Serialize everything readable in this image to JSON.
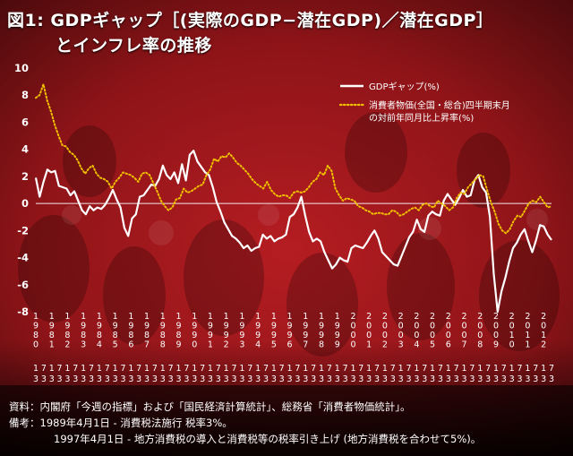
{
  "title_line1": "図1: GDPギャップ［(実際のGDP−潜在GDP)／潜在GDP］",
  "title_line2": "とインフレ率の推移",
  "footer": {
    "source": "資料：内閣府「今週の指標」および「国民経済計算統計」、総務省「消費者物価統計」。",
    "note1": "備考：1989年4月1日 - 消費税法施行 税率3%。",
    "note2": "1997年4月1日 - 地方消費税の導入と消費税等の税率引き上げ (地方消費税を合わせて5%)。"
  },
  "colors": {
    "background": "#a0181c",
    "gdp_gap": "#ffffff",
    "cpi": "#f0c000"
  },
  "chart_data": {
    "type": "line",
    "ylim": [
      -8,
      10
    ],
    "yticks": [
      -8,
      -6,
      -4,
      -2,
      0,
      2,
      4,
      6,
      8,
      10
    ],
    "grid": false,
    "legend_position": "top-right",
    "x_tick_labels": [
      [
        "1980",
        "1",
        "3"
      ],
      [
        "1980",
        "7",
        "3"
      ],
      [
        "1981",
        "1",
        "3"
      ],
      [
        "1981",
        "7",
        "3"
      ],
      [
        "1982",
        "1",
        "3"
      ],
      [
        "1982",
        "7",
        "3"
      ],
      [
        "1983",
        "1",
        "3"
      ],
      [
        "1983",
        "7",
        "3"
      ],
      [
        "1984",
        "1",
        "3"
      ],
      [
        "1984",
        "7",
        "3"
      ],
      [
        "1985",
        "1",
        "3"
      ],
      [
        "1985",
        "7",
        "3"
      ],
      [
        "1986",
        "1",
        "3"
      ],
      [
        "1986",
        "7",
        "3"
      ],
      [
        "1987",
        "1",
        "3"
      ],
      [
        "1987",
        "7",
        "3"
      ],
      [
        "1988",
        "1",
        "3"
      ],
      [
        "1988",
        "7",
        "3"
      ],
      [
        "1989",
        "1",
        "3"
      ],
      [
        "1989",
        "7",
        "3"
      ],
      [
        "1990",
        "1",
        "3"
      ],
      [
        "1990",
        "7",
        "3"
      ],
      [
        "1991",
        "1",
        "3"
      ],
      [
        "1991",
        "7",
        "3"
      ],
      [
        "1992",
        "1",
        "3"
      ],
      [
        "1992",
        "7",
        "3"
      ],
      [
        "1993",
        "1",
        "3"
      ],
      [
        "1993",
        "7",
        "3"
      ],
      [
        "1994",
        "1",
        "3"
      ],
      [
        "1994",
        "7",
        "3"
      ],
      [
        "1995",
        "1",
        "3"
      ],
      [
        "1995",
        "7",
        "3"
      ],
      [
        "1996",
        "1",
        "3"
      ],
      [
        "1996",
        "7",
        "3"
      ],
      [
        "1997",
        "1",
        "3"
      ],
      [
        "1997",
        "7",
        "3"
      ],
      [
        "1998",
        "1",
        "3"
      ],
      [
        "1998",
        "7",
        "3"
      ],
      [
        "1999",
        "1",
        "3"
      ],
      [
        "1999",
        "7",
        "3"
      ],
      [
        "2000",
        "1",
        "3"
      ],
      [
        "2000",
        "7",
        "3"
      ],
      [
        "2001",
        "1",
        "3"
      ],
      [
        "2001",
        "7",
        "3"
      ],
      [
        "2002",
        "1",
        "3"
      ],
      [
        "2002",
        "7",
        "3"
      ],
      [
        "2003",
        "1",
        "3"
      ],
      [
        "2003",
        "7",
        "3"
      ],
      [
        "2004",
        "1",
        "3"
      ],
      [
        "2004",
        "7",
        "3"
      ],
      [
        "2005",
        "1",
        "3"
      ],
      [
        "2005",
        "7",
        "3"
      ],
      [
        "2006",
        "1",
        "3"
      ],
      [
        "2006",
        "7",
        "3"
      ],
      [
        "2007",
        "1",
        "3"
      ],
      [
        "2007",
        "7",
        "3"
      ],
      [
        "2008",
        "1",
        "3"
      ],
      [
        "2008",
        "7",
        "3"
      ],
      [
        "2009",
        "1",
        "3"
      ],
      [
        "2009",
        "7",
        "3"
      ],
      [
        "2010",
        "1",
        "3"
      ],
      [
        "2010",
        "7",
        "3"
      ],
      [
        "2011",
        "1",
        "3"
      ],
      [
        "2011",
        "7",
        "3"
      ],
      [
        "2012",
        "1",
        "3"
      ],
      [
        "2012",
        "7",
        "3"
      ]
    ],
    "series": [
      {
        "name": "GDPギャップ(%)",
        "style": "solid",
        "values": [
          1.9,
          0.5,
          1.6,
          2.5,
          2.3,
          2.4,
          1.3,
          1.2,
          1.1,
          0.6,
          0.9,
          0.2,
          -0.5,
          -0.8,
          -0.2,
          -0.5,
          -0.3,
          -0.4,
          -0.1,
          0.4,
          1.0,
          0.3,
          -0.3,
          -1.8,
          -2.4,
          -1.1,
          -0.8,
          0.5,
          0.6,
          1.0,
          1.4,
          1.3,
          1.8,
          2.8,
          2.1,
          1.8,
          2.3,
          1.5,
          2.9,
          1.7,
          3.6,
          3.9,
          3.1,
          2.7,
          2.3,
          2.1,
          1.2,
          0.1,
          -0.6,
          -1.4,
          -1.9,
          -2.4,
          -2.6,
          -2.9,
          -3.3,
          -3.1,
          -3.5,
          -3.3,
          -3.2,
          -2.3,
          -2.6,
          -2.4,
          -2.8,
          -2.6,
          -2.5,
          -2.3,
          -1.0,
          -0.8,
          -0.3,
          0.5,
          -0.9,
          -2.1,
          -2.8,
          -2.6,
          -2.8,
          -3.6,
          -4.2,
          -4.8,
          -4.5,
          -4.0,
          -4.2,
          -4.3,
          -3.3,
          -3.1,
          -3.2,
          -3.3,
          -2.9,
          -2.4,
          -2.0,
          -2.6,
          -3.6,
          -3.9,
          -4.2,
          -4.5,
          -4.6,
          -3.9,
          -3.2,
          -2.5,
          -2.1,
          -1.2,
          -1.9,
          -2.1,
          -0.9,
          -0.6,
          -0.8,
          -0.9,
          0.2,
          0.7,
          0.3,
          -0.1,
          0.4,
          1.0,
          0.5,
          0.6,
          1.7,
          2.1,
          1.2,
          0.8,
          -1.0,
          -5.2,
          -8.0,
          -6.5,
          -5.5,
          -4.3,
          -3.3,
          -2.9,
          -2.3,
          -1.9,
          -2.8,
          -3.6,
          -2.7,
          -1.6,
          -1.7,
          -2.3,
          -2.7
        ]
      },
      {
        "name": "消費者物価(全国・総合)四半期末月の対前年同月比上昇率(%)",
        "style": "dotted",
        "values": [
          7.8,
          8.0,
          8.8,
          7.6,
          6.8,
          5.8,
          5.0,
          4.3,
          4.2,
          3.8,
          3.6,
          3.2,
          2.6,
          2.2,
          2.6,
          2.8,
          2.2,
          1.9,
          1.8,
          1.6,
          1.1,
          1.6,
          1.9,
          2.3,
          2.2,
          2.1,
          1.9,
          1.6,
          2.2,
          2.3,
          2.1,
          1.5,
          0.9,
          0.2,
          -0.2,
          -0.5,
          -0.3,
          0.3,
          0.4,
          1.1,
          0.8,
          0.9,
          1.1,
          1.3,
          1.4,
          2.1,
          2.5,
          3.3,
          3.1,
          3.5,
          3.4,
          3.7,
          3.4,
          3.0,
          2.8,
          2.5,
          2.2,
          1.8,
          1.5,
          1.3,
          1.1,
          1.6,
          1.0,
          0.7,
          0.5,
          0.6,
          0.6,
          0.4,
          0.8,
          0.9,
          0.8,
          0.9,
          1.2,
          1.6,
          1.8,
          2.3,
          2.1,
          2.8,
          2.4,
          1.1,
          0.6,
          0.2,
          0.4,
          0.3,
          0.2,
          -0.2,
          -0.3,
          -0.5,
          -0.6,
          -0.8,
          -0.7,
          -0.7,
          -0.8,
          -0.8,
          -0.5,
          -0.6,
          -0.9,
          -0.8,
          -0.6,
          -0.4,
          -0.3,
          -0.5,
          -0.1,
          0.0,
          -0.2,
          -0.3,
          0.2,
          0.0,
          -0.2,
          -0.5,
          -0.3,
          0.4,
          0.8,
          0.7,
          1.2,
          1.5,
          1.8,
          2.1,
          2.0,
          1.0,
          0.1,
          -0.6,
          -1.5,
          -2.0,
          -2.2,
          -1.9,
          -1.3,
          -0.9,
          -1.0,
          -0.5,
          0.0,
          0.2,
          0.1,
          0.5,
          0.1,
          -0.3,
          -0.2
        ]
      }
    ]
  }
}
